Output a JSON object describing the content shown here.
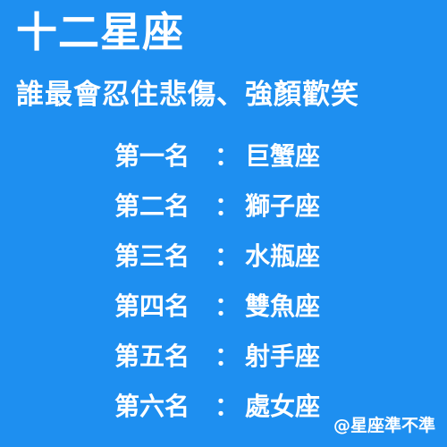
{
  "page": {
    "background_color": "#1e8ff0",
    "text_color": "#ffffff",
    "title": "十二星座",
    "subtitle": "誰最會忍住悲傷、強顏歡笑",
    "separator": "：",
    "watermark": "@星座準不準"
  },
  "rankings": [
    {
      "label": "第一名",
      "sign": "巨蟹座"
    },
    {
      "label": "第二名",
      "sign": "獅子座"
    },
    {
      "label": "第三名",
      "sign": "水瓶座"
    },
    {
      "label": "第四名",
      "sign": "雙魚座"
    },
    {
      "label": "第五名",
      "sign": "射手座"
    },
    {
      "label": "第六名",
      "sign": "處女座"
    }
  ]
}
